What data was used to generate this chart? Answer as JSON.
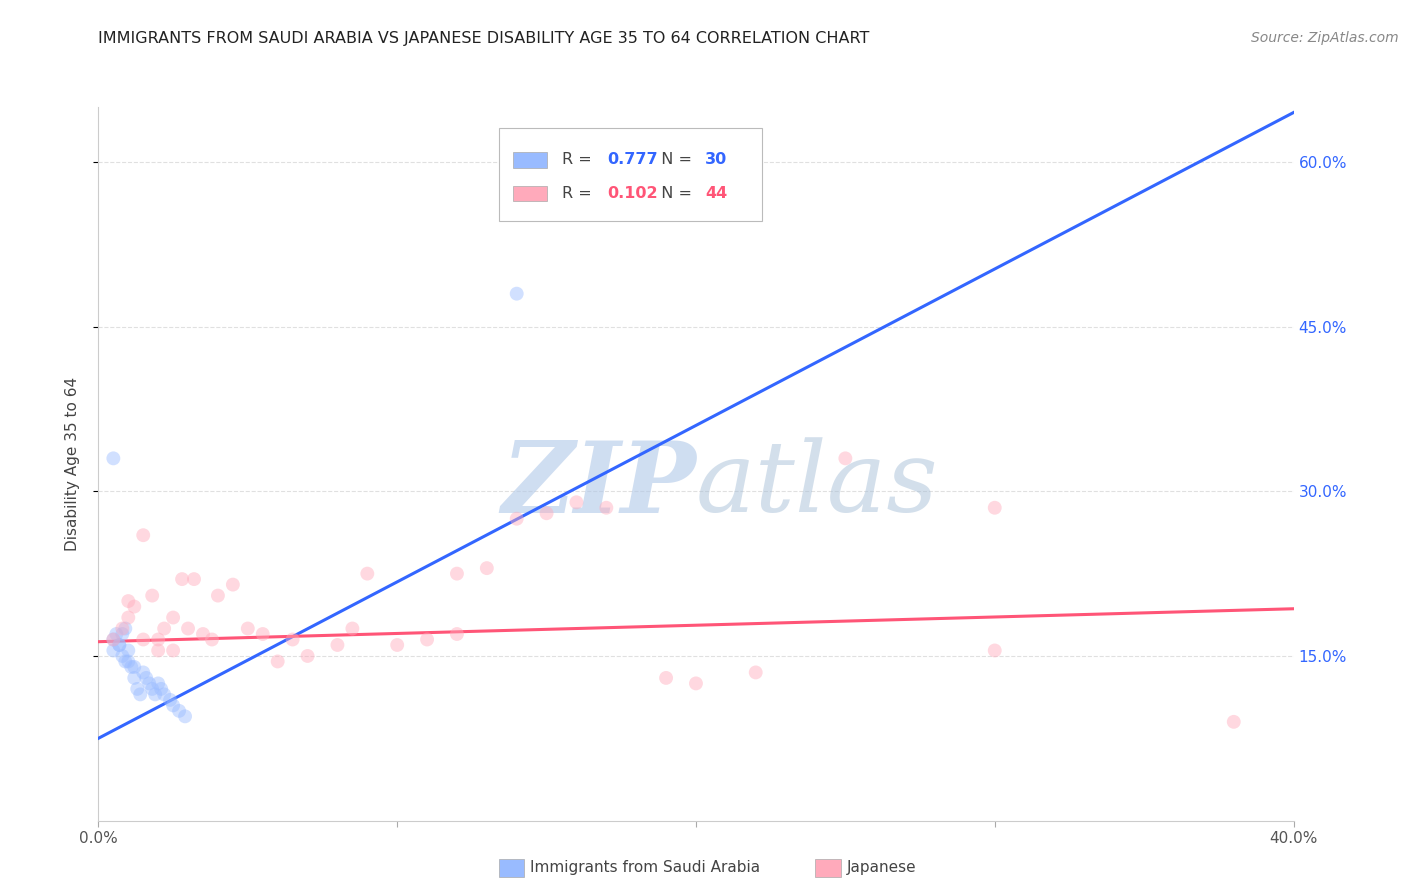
{
  "title": "IMMIGRANTS FROM SAUDI ARABIA VS JAPANESE DISABILITY AGE 35 TO 64 CORRELATION CHART",
  "source": "Source: ZipAtlas.com",
  "ylabel": "Disability Age 35 to 64",
  "xmin": 0.0,
  "xmax": 0.4,
  "ymin": 0.0,
  "ymax": 0.65,
  "xtick_positions": [
    0.0,
    0.1,
    0.2,
    0.3,
    0.4
  ],
  "xtick_labels": [
    "0.0%",
    "",
    "",
    "",
    "40.0%"
  ],
  "ytick_positions": [
    0.15,
    0.3,
    0.45,
    0.6
  ],
  "ytick_labels": [
    "15.0%",
    "30.0%",
    "45.0%",
    "60.0%"
  ],
  "saudi_scatter_x": [
    0.005,
    0.007,
    0.008,
    0.009,
    0.01,
    0.01,
    0.011,
    0.012,
    0.013,
    0.014,
    0.015,
    0.016,
    0.017,
    0.018,
    0.019,
    0.02,
    0.021,
    0.022,
    0.024,
    0.025,
    0.027,
    0.029,
    0.005,
    0.006,
    0.007,
    0.008,
    0.009,
    0.012,
    0.14,
    0.005
  ],
  "saudi_scatter_y": [
    0.155,
    0.16,
    0.17,
    0.175,
    0.155,
    0.145,
    0.14,
    0.13,
    0.12,
    0.115,
    0.135,
    0.13,
    0.125,
    0.12,
    0.115,
    0.125,
    0.12,
    0.115,
    0.11,
    0.105,
    0.1,
    0.095,
    0.165,
    0.17,
    0.16,
    0.15,
    0.145,
    0.14,
    0.48,
    0.33
  ],
  "japanese_scatter_x": [
    0.005,
    0.008,
    0.01,
    0.012,
    0.015,
    0.018,
    0.02,
    0.022,
    0.025,
    0.028,
    0.03,
    0.032,
    0.035,
    0.038,
    0.04,
    0.045,
    0.05,
    0.055,
    0.06,
    0.065,
    0.07,
    0.08,
    0.085,
    0.09,
    0.1,
    0.11,
    0.12,
    0.13,
    0.14,
    0.15,
    0.16,
    0.17,
    0.19,
    0.2,
    0.22,
    0.25,
    0.3,
    0.38,
    0.01,
    0.015,
    0.02,
    0.025,
    0.12,
    0.3
  ],
  "japanese_scatter_y": [
    0.165,
    0.175,
    0.185,
    0.195,
    0.26,
    0.205,
    0.165,
    0.175,
    0.185,
    0.22,
    0.175,
    0.22,
    0.17,
    0.165,
    0.205,
    0.215,
    0.175,
    0.17,
    0.145,
    0.165,
    0.15,
    0.16,
    0.175,
    0.225,
    0.16,
    0.165,
    0.225,
    0.23,
    0.275,
    0.28,
    0.29,
    0.285,
    0.13,
    0.125,
    0.135,
    0.33,
    0.285,
    0.09,
    0.2,
    0.165,
    0.155,
    0.155,
    0.17,
    0.155
  ],
  "saudi_line_x": [
    0.0,
    0.4
  ],
  "saudi_line_y": [
    0.075,
    0.645
  ],
  "japanese_line_x": [
    0.0,
    0.4
  ],
  "japanese_line_y": [
    0.163,
    0.193
  ],
  "scatter_size": 100,
  "scatter_alpha": 0.45,
  "saudi_scatter_color": "#99bbff",
  "japanese_scatter_color": "#ffaabb",
  "saudi_line_color": "#3366ff",
  "japanese_line_color": "#ff5577",
  "grid_color": "#dddddd",
  "bg_color": "#ffffff",
  "legend_r1": "0.777",
  "legend_n1": "30",
  "legend_r2": "0.102",
  "legend_n2": "44",
  "legend_color1": "#3366ff",
  "legend_color2": "#ff5577",
  "bottom_label1": "Immigrants from Saudi Arabia",
  "bottom_label2": "Japanese"
}
